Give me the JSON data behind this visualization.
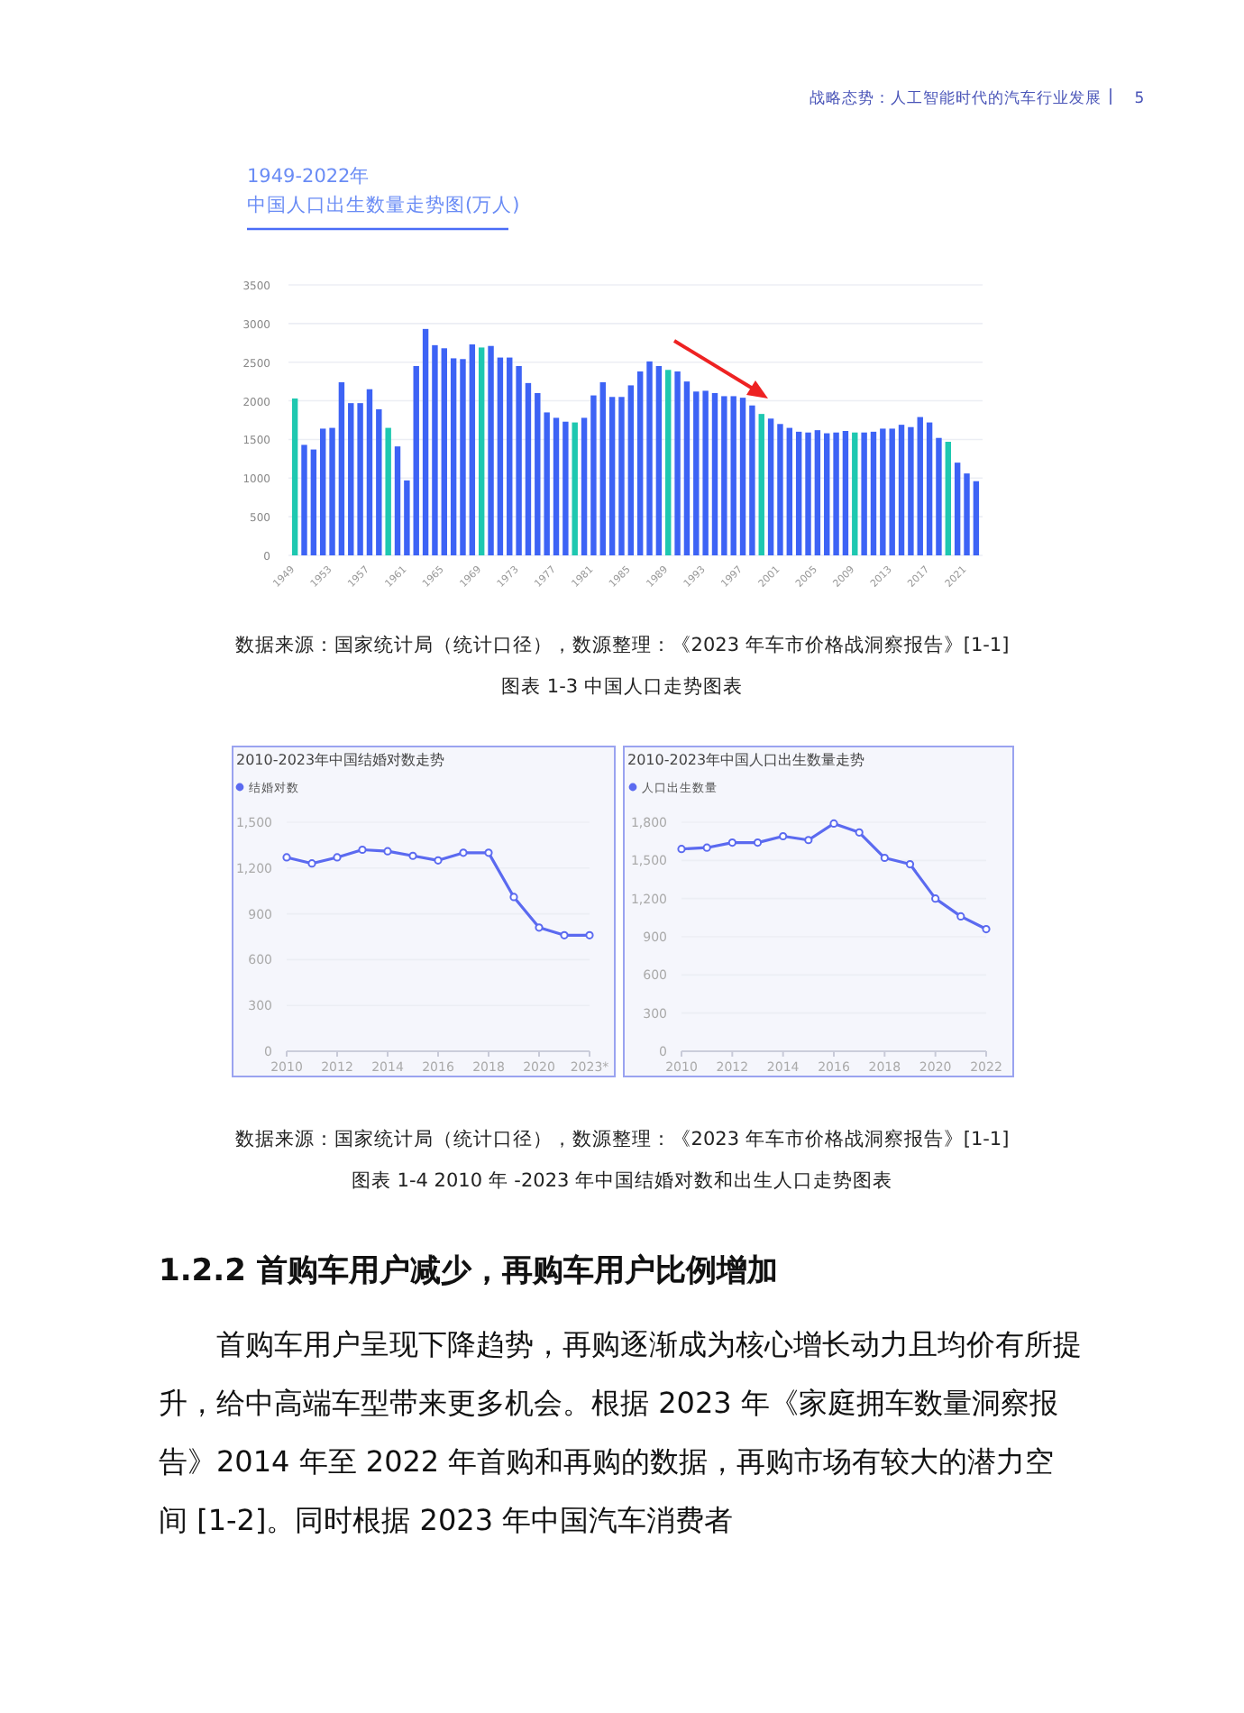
{
  "chart_data": [
    {
      "type": "bar",
      "title": "1949-2022年",
      "subtitle": "中国人口出生数量走势图(万人)",
      "annotations": [
        "战略态势：人工智能时代的汽车行业发展",
        "5",
        "数据来源：国家统计局（统计口径），数源整理：《2023 年车市价格战洞察报告》[1-1]",
        "图表 1-3 中国人口走势图表"
      ],
      "categories": [
        "1949",
        null,
        null,
        null,
        "1953",
        null,
        null,
        null,
        "1957",
        null,
        null,
        null,
        "1961",
        null,
        null,
        null,
        "1965",
        null,
        null,
        null,
        "1969",
        null,
        null,
        null,
        "1973",
        null,
        null,
        null,
        "1977",
        null,
        null,
        null,
        "1981",
        null,
        null,
        null,
        "1985",
        null,
        null,
        null,
        "1989",
        null,
        null,
        null,
        "1993",
        null,
        null,
        null,
        "1997",
        null,
        null,
        null,
        "2001",
        null,
        null,
        null,
        "2005",
        null,
        null,
        null,
        "2009",
        null,
        null,
        null,
        "2013",
        null,
        null,
        null,
        "2017",
        null,
        null,
        null,
        "2021",
        null
      ],
      "values": [
        2030,
        1430,
        1370,
        1640,
        1650,
        2240,
        1970,
        1970,
        2150,
        1890,
        1650,
        1410,
        970,
        2450,
        2930,
        2720,
        2680,
        2550,
        2540,
        2730,
        2690,
        2710,
        2560,
        2560,
        2450,
        2230,
        2100,
        1850,
        1780,
        1730,
        1720,
        1780,
        2070,
        2240,
        2050,
        2050,
        2200,
        2380,
        2510,
        2450,
        2400,
        2380,
        2250,
        2120,
        2130,
        2100,
        2060,
        2060,
        2040,
        1940,
        1830,
        1770,
        1700,
        1650,
        1600,
        1590,
        1620,
        1580,
        1590,
        1610,
        1590,
        1590,
        1600,
        1640,
        1640,
        1690,
        1660,
        1790,
        1720,
        1520,
        1470,
        1200,
        1060,
        960
      ],
      "colors": [
        "#1ec8b0",
        "#3d63f5",
        "#3d63f5",
        "#3d63f5",
        "#3d63f5",
        "#3d63f5",
        "#3d63f5",
        "#3d63f5",
        "#3d63f5",
        "#3d63f5",
        "#1ec8b0",
        "#3d63f5",
        "#3d63f5",
        "#3d63f5",
        "#3d63f5",
        "#3d63f5",
        "#3d63f5",
        "#3d63f5",
        "#3d63f5",
        "#3d63f5",
        "#1ec8b0",
        "#3d63f5",
        "#3d63f5",
        "#3d63f5",
        "#3d63f5",
        "#3d63f5",
        "#3d63f5",
        "#3d63f5",
        "#3d63f5",
        "#3d63f5",
        "#1ec8b0",
        "#3d63f5",
        "#3d63f5",
        "#3d63f5",
        "#3d63f5",
        "#3d63f5",
        "#3d63f5",
        "#3d63f5",
        "#3d63f5",
        "#3d63f5",
        "#1ec8b0",
        "#3d63f5",
        "#3d63f5",
        "#3d63f5",
        "#3d63f5",
        "#3d63f5",
        "#3d63f5",
        "#3d63f5",
        "#3d63f5",
        "#3d63f5",
        "#1ec8b0",
        "#3d63f5",
        "#3d63f5",
        "#3d63f5",
        "#3d63f5",
        "#3d63f5",
        "#3d63f5",
        "#3d63f5",
        "#3d63f5",
        "#3d63f5",
        "#1ec8b0",
        "#3d63f5",
        "#3d63f5",
        "#3d63f5",
        "#3d63f5",
        "#3d63f5",
        "#3d63f5",
        "#3d63f5",
        "#3d63f5",
        "#3d63f5",
        "#1ec8b0",
        "#3d63f5",
        "#3d63f5",
        "#3d63f5"
      ],
      "ylim": [
        0,
        3500
      ],
      "yticks": [
        0,
        500,
        1000,
        1500,
        2000,
        2500,
        3000,
        3500
      ],
      "grid": "y"
    },
    {
      "type": "line",
      "title": "2010-2023年中国结婚对数走势",
      "legend": "top left",
      "marker": "circle",
      "grid": "y",
      "categories": [
        "2010",
        null,
        "2012",
        null,
        "2014",
        null,
        "2016",
        null,
        "2018",
        null,
        "2020",
        null,
        "2023*"
      ],
      "series": [
        {
          "name": "结婚对数",
          "color": "#5b6af0",
          "values": [
            1270,
            1230,
            1270,
            1320,
            1310,
            1280,
            1250,
            1300,
            1300,
            1010,
            810,
            760,
            760
          ]
        }
      ],
      "ylim": [
        0,
        1500
      ],
      "yticks": [
        0,
        300,
        600,
        900,
        {
          "value": 1200,
          "label": "1,200"
        },
        {
          "value": 1500,
          "label": "1,500"
        }
      ]
    },
    {
      "type": "line",
      "title": "2010-2023年中国人口出生数量走势",
      "legend": "top left",
      "marker": "circle",
      "grid": "y",
      "x": [
        2010,
        2011,
        2012,
        2013,
        2014,
        2015,
        2016,
        2017,
        2018,
        2019,
        2020,
        2021,
        2022
      ],
      "series": [
        {
          "name": "人口出生数量",
          "color": "#5b6af0",
          "values": [
            1590,
            1600,
            1640,
            1640,
            1690,
            1660,
            1790,
            1720,
            1520,
            1470,
            1200,
            1060,
            960
          ]
        }
      ],
      "xlim": [
        2010,
        2022
      ],
      "xticks": [
        2010,
        2012,
        2014,
        2016,
        2018,
        2020,
        2022
      ],
      "ylim": [
        0,
        1800
      ],
      "yticks": [
        0,
        300,
        600,
        900,
        {
          "value": 1200,
          "label": "1,200"
        },
        {
          "value": 1500,
          "label": "1,500"
        },
        {
          "value": 1800,
          "label": "1,800"
        }
      ],
      "annotations": [
        "数据来源：国家统计局（统计口径），数源整理：《2023 年车市价格战洞察报告》[1-1]",
        "图表 1-4 2010 年 -2023 年中国结婚对数和出生人口走势图表",
        "1.2.2 首购车用户减少，再购车用户比例增加",
        "首购车用户呈现下降趋势，再购逐渐成为核心增长动力且均价有所提升，给中高端车型带来更多机会。根据 2023 年《家庭拥车数量洞察报告》2014 年至 2022 年首购和再购的数据，再购市场有较大的潜力空间 [1-2]。同时根据 2023 年中国汽车消费者"
      ]
    }
  ]
}
